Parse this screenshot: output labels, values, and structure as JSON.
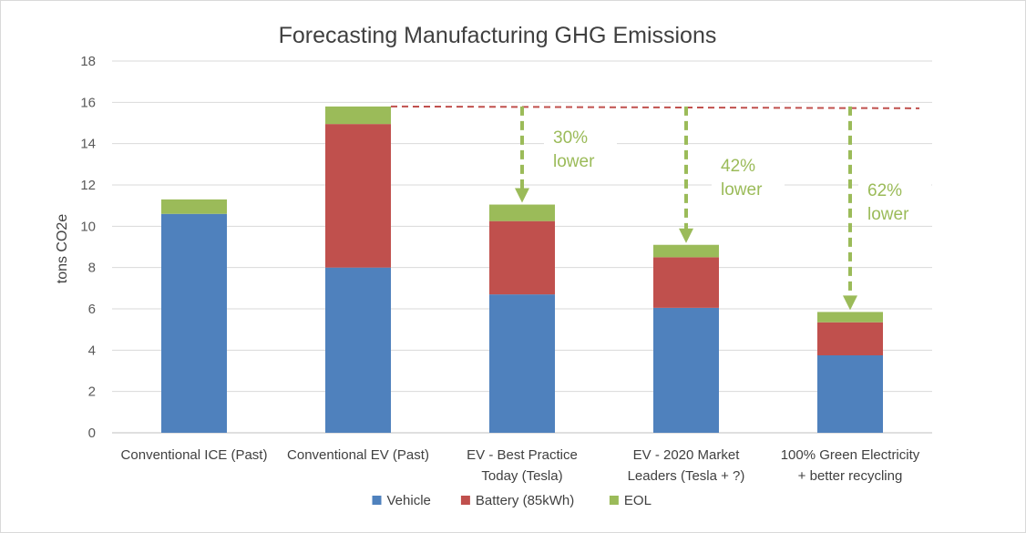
{
  "chart_data": {
    "type": "bar",
    "stacked": true,
    "title": "Forecasting Manufacturing GHG Emissions",
    "xlabel": "",
    "ylabel": "tons CO2e",
    "ylim": [
      0,
      18
    ],
    "yticks": [
      0,
      2,
      4,
      6,
      8,
      10,
      12,
      14,
      16,
      18
    ],
    "grid": true,
    "legend_position": "bottom",
    "categories": [
      [
        "Conventional ICE (Past)"
      ],
      [
        "Conventional EV (Past)"
      ],
      [
        "EV - Best Practice",
        "Today (Tesla)"
      ],
      [
        "EV - 2020 Market",
        "Leaders (Tesla + ?)"
      ],
      [
        "100% Green Electricity",
        "+ better recycling"
      ]
    ],
    "series": [
      {
        "name": "Vehicle",
        "color": "#4f81bd",
        "values": [
          10.6,
          8.0,
          6.7,
          6.05,
          3.75
        ]
      },
      {
        "name": "Battery (85kWh)",
        "color": "#c0504d",
        "values": [
          0,
          6.95,
          3.55,
          2.45,
          1.6
        ]
      },
      {
        "name": "EOL",
        "color": "#9bbb59",
        "values": [
          0.7,
          0.85,
          0.8,
          0.6,
          0.5
        ]
      }
    ],
    "reference_line": {
      "value": 15.8,
      "color": "#c0504d",
      "style": "dashed"
    },
    "annotations": [
      {
        "lines": [
          "30%",
          "lower"
        ],
        "category_index": 2
      },
      {
        "lines": [
          "42%",
          "lower"
        ],
        "category_index": 3
      },
      {
        "lines": [
          "62%",
          "lower"
        ],
        "category_index": 4
      }
    ],
    "annotation_color": "#9bbb59"
  }
}
